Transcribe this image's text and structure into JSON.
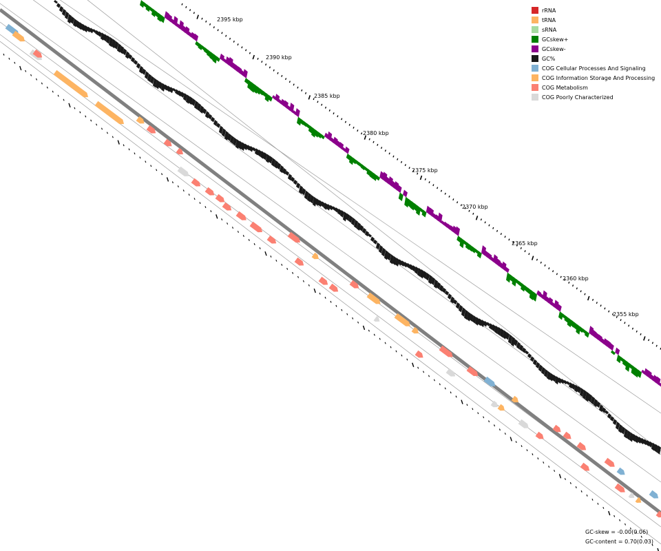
{
  "legend": {
    "items": [
      {
        "label": "rRNA",
        "color": "#d62728"
      },
      {
        "label": "tRNA",
        "color": "#fdb462"
      },
      {
        "label": "sRNA",
        "color": "#a6dba0"
      },
      {
        "label": "GCskew+",
        "color": "#008000"
      },
      {
        "label": "GCskew-",
        "color": "#8b008b"
      },
      {
        "label": "GC%",
        "color": "#1a1a1a"
      },
      {
        "label": "COG Cellular Processes And Signaling",
        "color": "#80b1d3"
      },
      {
        "label": "COG Information Storage And Processing",
        "color": "#fdb462"
      },
      {
        "label": "COG Metabolism",
        "color": "#fb8072"
      },
      {
        "label": "COG Poorly Characterized",
        "color": "#d9d9d9"
      }
    ]
  },
  "scale": {
    "unit": "kbp",
    "ticks": [
      {
        "label": "2395 kbp",
        "value": 2395
      },
      {
        "label": "2390 kbp",
        "value": 2390
      },
      {
        "label": "2385 kbp",
        "value": 2385
      },
      {
        "label": "2380 kbp",
        "value": 2380
      },
      {
        "label": "2375 kbp",
        "value": 2375
      },
      {
        "label": "2370 kbp",
        "value": 2370
      },
      {
        "label": "2365 kbp",
        "value": 2365
      },
      {
        "label": "2360 kbp",
        "value": 2360
      },
      {
        "label": "2355 kbp",
        "value": 2355
      }
    ]
  },
  "stats": {
    "gc_skew": "GC-skew = -0.00(0.06)",
    "gc_content": "GC-content = 0.70(0.03)"
  }
}
